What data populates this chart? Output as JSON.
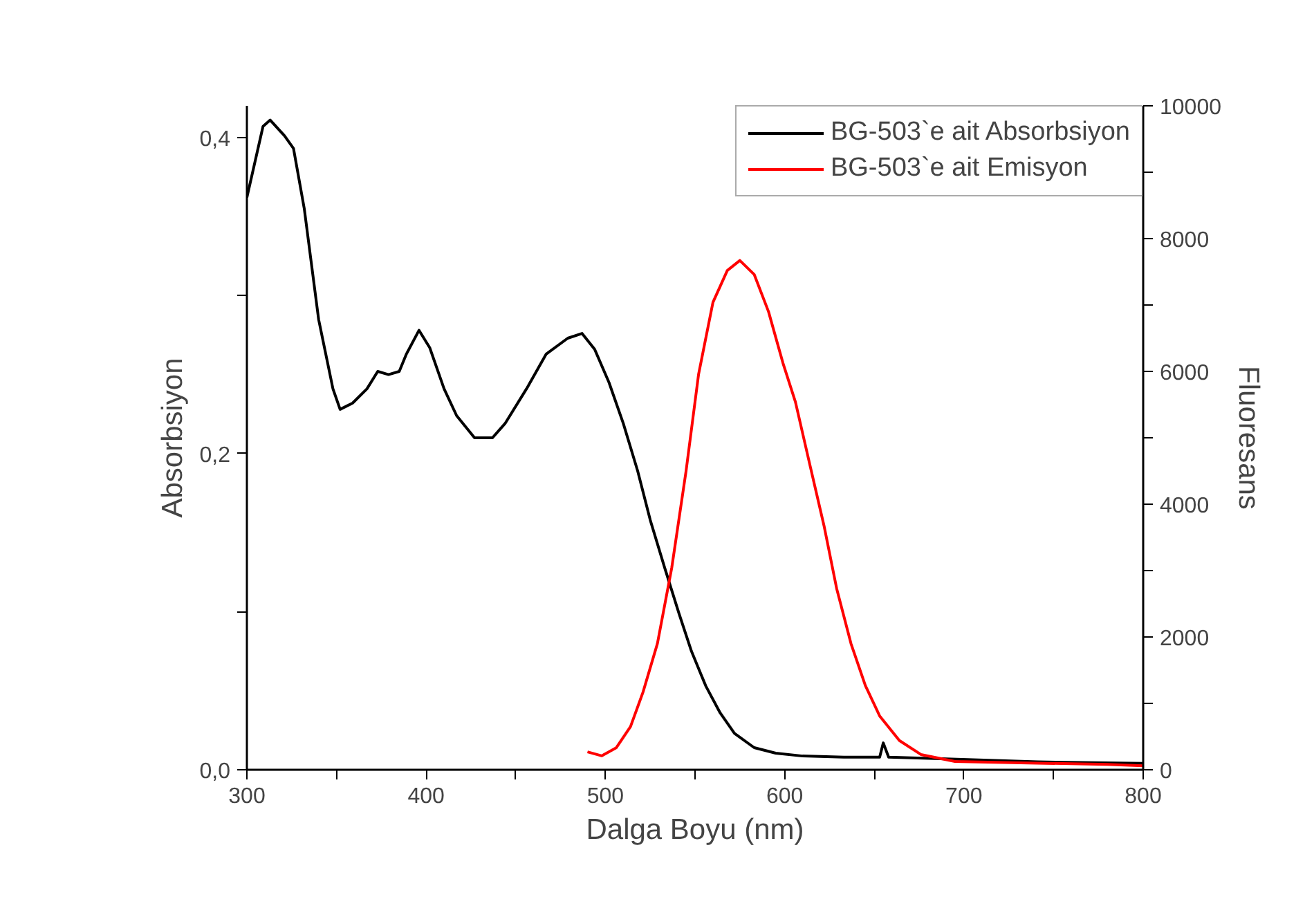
{
  "chart_data": {
    "type": "line",
    "xlabel": "Dalga Boyu (nm)",
    "ylabel": "Absorbsiyon",
    "y2label": "Fluoresans",
    "xlim": [
      300,
      800
    ],
    "xticks": [
      300,
      {
        "value": 350,
        "label": null
      },
      400,
      {
        "value": 450,
        "label": null
      },
      500,
      {
        "value": 550,
        "label": null
      },
      600,
      {
        "value": 650,
        "label": null
      },
      700,
      {
        "value": 750,
        "label": null
      },
      800
    ],
    "ylim": [
      0,
      0.42
    ],
    "yticks": [
      {
        "value": 0,
        "label": "0,0"
      },
      {
        "value": 0.1,
        "label": null
      },
      {
        "value": 0.2,
        "label": "0,2"
      },
      {
        "value": 0.3,
        "label": null
      },
      {
        "value": 0.4,
        "label": "0,4"
      }
    ],
    "y2lim": [
      0,
      10000
    ],
    "y2ticks": [
      0,
      {
        "value": 1000,
        "label": null
      },
      2000,
      {
        "value": 3000,
        "label": null
      },
      4000,
      {
        "value": 5000,
        "label": null
      },
      6000,
      {
        "value": 7000,
        "label": null
      },
      8000,
      {
        "value": 9000,
        "label": null
      },
      10000
    ],
    "grid": false,
    "legend": "top right",
    "marker": "none",
    "line_style": "solid",
    "series": [
      {
        "name": "BG-503`e ait Absorbsiyon",
        "color": "#000000",
        "x": [
          300,
          309,
          313,
          321,
          326,
          332,
          340,
          348,
          352,
          359,
          367,
          373,
          379,
          385,
          389,
          396,
          402,
          410,
          417,
          427,
          437,
          444,
          456,
          467,
          479,
          487,
          494,
          502,
          510,
          518,
          525,
          533,
          541,
          548,
          556,
          564,
          572,
          583,
          595,
          610,
          633,
          653,
          655,
          658,
          687,
          741,
          800
        ],
        "values": [
          0.362,
          0.407,
          0.411,
          0.401,
          0.393,
          0.355,
          0.285,
          0.241,
          0.228,
          0.232,
          0.241,
          0.252,
          0.25,
          0.252,
          0.263,
          0.278,
          0.267,
          0.241,
          0.224,
          0.21,
          0.21,
          0.219,
          0.241,
          0.263,
          0.273,
          0.276,
          0.266,
          0.245,
          0.219,
          0.189,
          0.158,
          0.128,
          0.099,
          0.075,
          0.053,
          0.036,
          0.023,
          0.014,
          0.0105,
          0.0087,
          0.008,
          0.008,
          0.017,
          0.008,
          0.007,
          0.005,
          0.004
        ]
      },
      {
        "name": "BG-503`e ait Emisyon",
        "color": "#ff0000",
        "axis": "y2",
        "x": [
          490,
          498,
          506,
          514,
          521,
          529,
          537,
          545,
          552,
          560,
          568,
          575,
          583,
          591,
          599,
          606,
          614,
          622,
          629,
          637,
          645,
          653,
          664,
          676,
          695,
          741,
          780,
          800
        ],
        "values": [
          270,
          210,
          330,
          650,
          1170,
          1900,
          3040,
          4500,
          5960,
          7040,
          7520,
          7670,
          7460,
          6900,
          6130,
          5540,
          4600,
          3670,
          2730,
          1900,
          1270,
          810,
          440,
          230,
          125,
          100,
          80,
          60
        ]
      }
    ]
  }
}
